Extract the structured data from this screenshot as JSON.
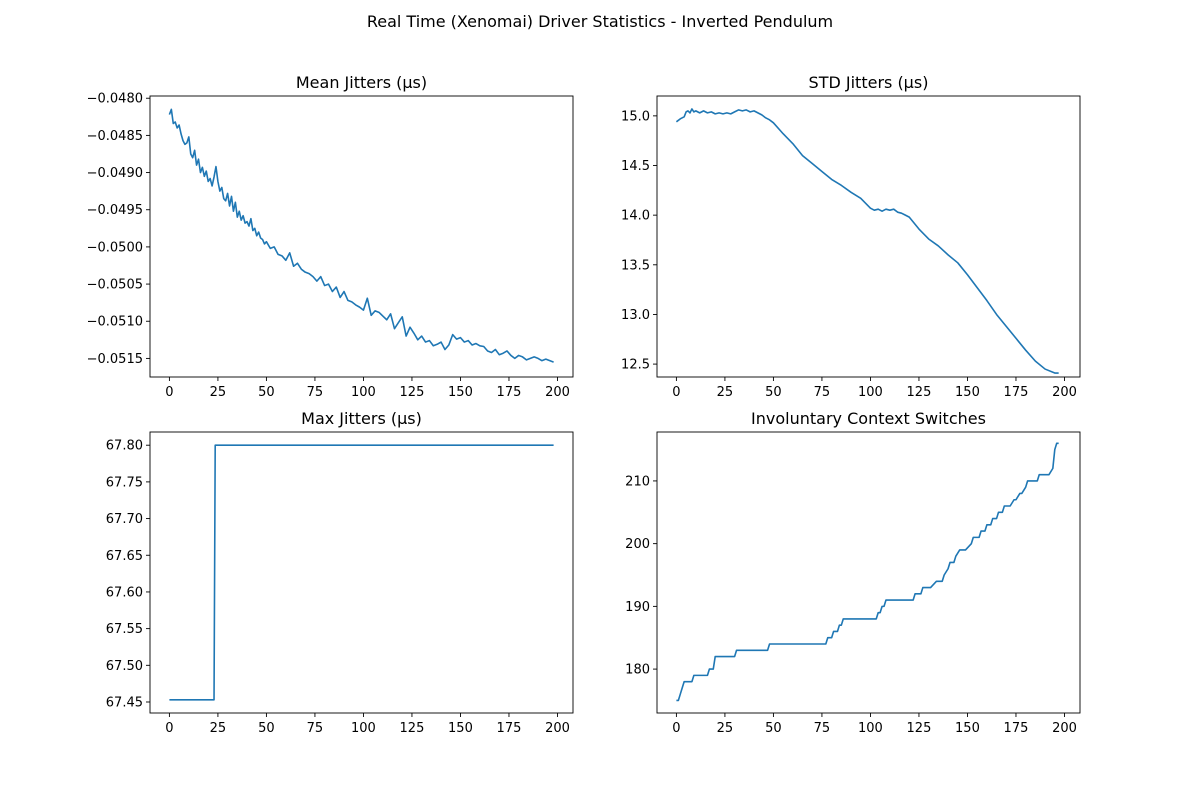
{
  "figure": {
    "title": "Real Time (Xenomai) Driver Statistics - Inverted Pendulum",
    "line_color": "#1f77b4"
  },
  "chart_data": [
    {
      "type": "line",
      "title": "Mean Jitters (µs)",
      "xlabel": "",
      "ylabel": "",
      "xlim": [
        -10,
        208
      ],
      "ylim": [
        -0.05175,
        -0.04797
      ],
      "xticks": [
        0,
        25,
        50,
        75,
        100,
        125,
        150,
        175,
        200
      ],
      "yticks": [
        -0.0515,
        -0.051,
        -0.0505,
        -0.05,
        -0.0495,
        -0.049,
        -0.0485,
        -0.048
      ],
      "ytick_labels": [
        "−0.0515",
        "−0.0510",
        "−0.0505",
        "−0.0500",
        "−0.0495",
        "−0.0490",
        "−0.0485",
        "−0.0480"
      ],
      "grid": false,
      "series": [
        {
          "x": [
            0,
            1,
            2,
            3,
            4,
            5,
            6,
            7,
            8,
            9,
            10,
            11,
            12,
            13,
            14,
            15,
            16,
            17,
            18,
            19,
            20,
            21,
            22,
            23,
            24,
            25,
            26,
            27,
            28,
            29,
            30,
            31,
            32,
            33,
            34,
            35,
            36,
            37,
            38,
            39,
            40,
            41,
            42,
            43,
            44,
            45,
            46,
            47,
            48,
            49,
            50,
            52,
            54,
            56,
            58,
            60,
            62,
            64,
            66,
            68,
            70,
            72,
            74,
            76,
            78,
            80,
            82,
            84,
            86,
            88,
            90,
            92,
            94,
            96,
            98,
            100,
            102,
            104,
            106,
            108,
            110,
            112,
            114,
            116,
            118,
            120,
            122,
            124,
            126,
            128,
            130,
            132,
            134,
            136,
            138,
            140,
            142,
            144,
            146,
            148,
            150,
            152,
            154,
            156,
            158,
            160,
            162,
            164,
            166,
            168,
            170,
            172,
            174,
            176,
            178,
            180,
            182,
            184,
            186,
            188,
            190,
            192,
            194,
            196,
            198
          ],
          "y": [
            -0.04822,
            -0.04815,
            -0.04834,
            -0.04832,
            -0.0484,
            -0.04836,
            -0.04848,
            -0.04857,
            -0.04862,
            -0.0486,
            -0.04852,
            -0.04875,
            -0.0488,
            -0.0487,
            -0.0489,
            -0.04882,
            -0.049,
            -0.04893,
            -0.04905,
            -0.04898,
            -0.04912,
            -0.04908,
            -0.04918,
            -0.04906,
            -0.04892,
            -0.04912,
            -0.04925,
            -0.0492,
            -0.04935,
            -0.04938,
            -0.04928,
            -0.04945,
            -0.04932,
            -0.04952,
            -0.0494,
            -0.0496,
            -0.04952,
            -0.04964,
            -0.04958,
            -0.04968,
            -0.04966,
            -0.04972,
            -0.04962,
            -0.04978,
            -0.04975,
            -0.04985,
            -0.0498,
            -0.04988,
            -0.0499,
            -0.04996,
            -0.04993,
            -0.05002,
            -0.05,
            -0.0501,
            -0.05012,
            -0.05018,
            -0.05008,
            -0.05026,
            -0.05022,
            -0.0503,
            -0.05034,
            -0.05036,
            -0.0504,
            -0.05046,
            -0.0504,
            -0.05052,
            -0.0505,
            -0.0506,
            -0.05054,
            -0.05068,
            -0.0506,
            -0.05072,
            -0.05074,
            -0.05078,
            -0.05081,
            -0.05085,
            -0.05069,
            -0.05092,
            -0.05086,
            -0.05088,
            -0.05093,
            -0.05098,
            -0.0509,
            -0.0511,
            -0.05102,
            -0.05094,
            -0.0512,
            -0.05108,
            -0.05116,
            -0.05125,
            -0.0512,
            -0.05128,
            -0.05126,
            -0.05133,
            -0.05131,
            -0.05128,
            -0.05138,
            -0.05132,
            -0.05118,
            -0.05124,
            -0.05122,
            -0.05128,
            -0.05126,
            -0.05132,
            -0.0513,
            -0.05133,
            -0.05134,
            -0.0514,
            -0.05142,
            -0.05138,
            -0.05145,
            -0.05143,
            -0.0514,
            -0.05146,
            -0.0515,
            -0.05146,
            -0.05148,
            -0.05152,
            -0.0515,
            -0.05148,
            -0.0515,
            -0.05153,
            -0.05151,
            -0.05153,
            -0.05155
          ]
        }
      ]
    },
    {
      "type": "line",
      "title": "STD Jitters (µs)",
      "xlabel": "",
      "ylabel": "",
      "xlim": [
        -10,
        208
      ],
      "ylim": [
        12.37,
        15.2
      ],
      "xticks": [
        0,
        25,
        50,
        75,
        100,
        125,
        150,
        175,
        200
      ],
      "yticks": [
        12.5,
        13.0,
        13.5,
        14.0,
        14.5,
        15.0
      ],
      "ytick_labels": [
        "12.5",
        "13.0",
        "13.5",
        "14.0",
        "14.5",
        "15.0"
      ],
      "grid": false,
      "series": [
        {
          "x": [
            0,
            2,
            4,
            5,
            6,
            7,
            8,
            9,
            10,
            12,
            14,
            16,
            18,
            20,
            22,
            24,
            26,
            28,
            30,
            32,
            34,
            36,
            38,
            40,
            42,
            44,
            46,
            48,
            50,
            55,
            60,
            65,
            70,
            75,
            80,
            85,
            90,
            95,
            100,
            102,
            104,
            106,
            108,
            110,
            112,
            114,
            116,
            118,
            120,
            125,
            130,
            135,
            140,
            145,
            150,
            155,
            160,
            165,
            170,
            175,
            180,
            185,
            190,
            195,
            197
          ],
          "y": [
            14.94,
            14.97,
            14.99,
            15.04,
            15.05,
            15.03,
            15.07,
            15.04,
            15.05,
            15.03,
            15.05,
            15.03,
            15.04,
            15.02,
            15.03,
            15.02,
            15.03,
            15.02,
            15.04,
            15.06,
            15.05,
            15.06,
            15.04,
            15.05,
            15.03,
            15.01,
            14.98,
            14.96,
            14.93,
            14.82,
            14.72,
            14.6,
            14.52,
            14.44,
            14.36,
            14.3,
            14.23,
            14.17,
            14.07,
            14.05,
            14.06,
            14.04,
            14.06,
            14.05,
            14.06,
            14.03,
            14.02,
            14.0,
            13.98,
            13.86,
            13.76,
            13.69,
            13.6,
            13.52,
            13.4,
            13.27,
            13.14,
            13.0,
            12.88,
            12.76,
            12.64,
            12.53,
            12.45,
            12.41,
            12.41
          ]
        }
      ]
    },
    {
      "type": "line",
      "title": "Max Jitters (µs)",
      "xlabel": "",
      "ylabel": "",
      "xlim": [
        -10,
        208
      ],
      "ylim": [
        67.435,
        67.818
      ],
      "xticks": [
        0,
        25,
        50,
        75,
        100,
        125,
        150,
        175,
        200
      ],
      "yticks": [
        67.45,
        67.5,
        67.55,
        67.6,
        67.65,
        67.7,
        67.75,
        67.8
      ],
      "ytick_labels": [
        "67.45",
        "67.50",
        "67.55",
        "67.60",
        "67.65",
        "67.70",
        "67.75",
        "67.80"
      ],
      "grid": false,
      "series": [
        {
          "x": [
            0,
            23,
            23.6,
            24,
            198
          ],
          "y": [
            67.453,
            67.453,
            67.8,
            67.8,
            67.8
          ]
        }
      ]
    },
    {
      "type": "line",
      "title": "Involuntary Context Switches",
      "xlabel": "",
      "ylabel": "",
      "xlim": [
        -10,
        208
      ],
      "ylim": [
        173.0,
        217.8
      ],
      "xticks": [
        0,
        25,
        50,
        75,
        100,
        125,
        150,
        175,
        200
      ],
      "yticks": [
        180,
        190,
        200,
        210
      ],
      "ytick_labels": [
        "180",
        "190",
        "200",
        "210"
      ],
      "grid": false,
      "series": [
        {
          "x": [
            0,
            1,
            2,
            3,
            4,
            5,
            8,
            9,
            12,
            13,
            16,
            17,
            18,
            19,
            20,
            22,
            28,
            30,
            31,
            37,
            47,
            48,
            77,
            78,
            80,
            81,
            83,
            84,
            85,
            86,
            87,
            88,
            103,
            104,
            105,
            106,
            107,
            108,
            110,
            122,
            123,
            126,
            127,
            130,
            131,
            134,
            135,
            137,
            138,
            140,
            141,
            143,
            144,
            146,
            147,
            149,
            152,
            153,
            155,
            156,
            157,
            159,
            160,
            162,
            163,
            165,
            166,
            168,
            169,
            171,
            172,
            174,
            175,
            177,
            178,
            180,
            181,
            183,
            184,
            186,
            187,
            189,
            190,
            192,
            194,
            195,
            196,
            197
          ],
          "y": [
            175,
            175,
            176,
            177,
            178,
            178,
            178,
            179,
            179,
            179,
            179,
            180,
            180,
            180,
            182,
            182,
            182,
            182,
            183,
            183,
            183,
            184,
            184,
            185,
            185,
            186,
            186,
            187,
            187,
            188,
            188,
            188,
            188,
            189,
            189,
            190,
            190,
            191,
            191,
            191,
            192,
            192,
            193,
            193,
            193,
            194,
            194,
            194,
            195,
            196,
            197,
            197,
            198,
            199,
            199,
            199,
            200,
            201,
            201,
            201,
            202,
            202,
            203,
            203,
            204,
            204,
            205,
            205,
            206,
            206,
            206,
            207,
            207,
            208,
            208,
            209,
            210,
            210,
            210,
            210,
            211,
            211,
            211,
            211,
            212,
            215,
            216,
            216
          ]
        }
      ]
    }
  ]
}
